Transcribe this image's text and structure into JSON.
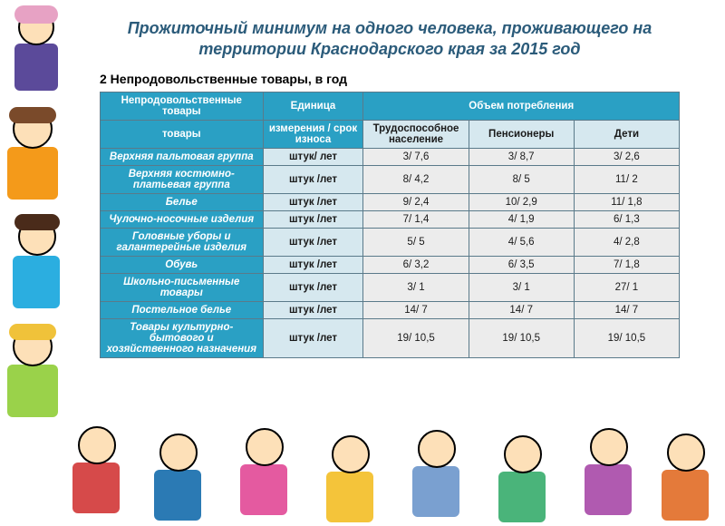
{
  "title_line1": "Прожиточный минимум на одного человека, проживающего на",
  "title_line2": "территории Краснодарского края за 2015 год",
  "section_heading": "2 Непродовольственные товары, в год",
  "colors": {
    "header_bg": "#2aa0c4",
    "header_fg": "#ffffff",
    "unit_bg": "#d6e8ef",
    "val_bg": "#ececec",
    "title_color": "#2b5b7a",
    "border": "#5a7a8a"
  },
  "table": {
    "top_headers": {
      "c1": "Непродовольственные товары",
      "c2": "Единица измерения / срок износа",
      "c3": "Объем потребления"
    },
    "sub_headers": {
      "s1": "Трудоспособное население",
      "s2": "Пенсионеры",
      "s3": "Дети"
    },
    "rows": [
      {
        "label": "Верхняя пальтовая группа",
        "unit": "штук/ лет",
        "v1": "3/ 7,6",
        "v2": "3/ 8,7",
        "v3": "3/ 2,6"
      },
      {
        "label": "Верхняя костюмно-платьевая группа",
        "unit": "штук /лет",
        "v1": "8/ 4,2",
        "v2": "8/ 5",
        "v3": "11/ 2"
      },
      {
        "label": "Белье",
        "unit": "штук /лет",
        "v1": "9/ 2,4",
        "v2": "10/ 2,9",
        "v3": "11/ 1,8"
      },
      {
        "label": "Чулочно-носочные изделия",
        "unit": "штук /лет",
        "v1": "7/ 1,4",
        "v2": "4/ 1,9",
        "v3": "6/ 1,3"
      },
      {
        "label": "Головные уборы и галантерейные изделия",
        "unit": "штук /лет",
        "v1": "5/ 5",
        "v2": "4/ 5,6",
        "v3": "4/ 2,8"
      },
      {
        "label": "Обувь",
        "unit": "штук /лет",
        "v1": "6/ 3,2",
        "v2": "6/ 3,5",
        "v3": "7/ 1,8"
      },
      {
        "label": "Школьно-письменные товары",
        "unit": "штук /лет",
        "v1": "3/ 1",
        "v2": "3/ 1",
        "v3": "27/ 1"
      },
      {
        "label": "Постельное белье",
        "unit": "штук /лет",
        "v1": "14/ 7",
        "v2": "14/ 7",
        "v3": "14/ 7"
      },
      {
        "label": "Товары культурно-бытового и хозяйственного назначения",
        "unit": "штук /лет",
        "v1": "19/ 10,5",
        "v2": "19/ 10,5",
        "v3": "19/ 10,5"
      }
    ]
  }
}
